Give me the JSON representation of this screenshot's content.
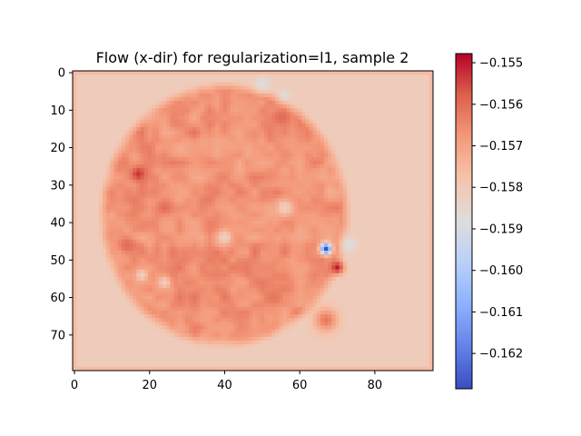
{
  "chart_data": {
    "type": "heatmap",
    "title": "Flow (x-dir) for regularization=l1, sample 2",
    "xlabel": "",
    "ylabel": "",
    "grid": false,
    "xlim": [
      -0.5,
      95.5
    ],
    "ylim": [
      79.5,
      -0.5
    ],
    "x_ticks": [
      0,
      20,
      40,
      60,
      80
    ],
    "y_ticks": [
      0,
      10,
      20,
      30,
      40,
      50,
      60,
      70
    ],
    "colormap": "coolwarm",
    "colorbar": {
      "vmin": -0.16285,
      "vmax": -0.15478,
      "ticks": [
        -0.155,
        -0.156,
        -0.157,
        -0.158,
        -0.159,
        -0.16,
        -0.161,
        -0.162
      ],
      "tick_labels": [
        "−0.155",
        "−0.156",
        "−0.157",
        "−0.158",
        "−0.159",
        "−0.160",
        "−0.161",
        "−0.162"
      ]
    },
    "grid_shape": {
      "rows": 80,
      "cols": 96
    },
    "background_value": -0.1581,
    "border_value": -0.1576,
    "region": {
      "shape": "ellipse",
      "center_x": 58,
      "center_y": 38,
      "radius_x": 46,
      "radius_y": 30,
      "base_value": -0.1567
    },
    "features": [
      {
        "x": 17,
        "y": 27,
        "radius": 2.0,
        "value": -0.1553
      },
      {
        "x": 24,
        "y": 36,
        "radius": 2.0,
        "value": -0.156
      },
      {
        "x": 14,
        "y": 46,
        "radius": 2.5,
        "value": -0.156
      },
      {
        "x": 55,
        "y": 12,
        "radius": 2.0,
        "value": -0.156
      },
      {
        "x": 53,
        "y": 60,
        "radius": 2.5,
        "value": -0.1562
      },
      {
        "x": 67,
        "y": 66,
        "radius": 3.0,
        "value": -0.1562
      },
      {
        "x": 70,
        "y": 52,
        "radius": 1.8,
        "value": -0.155
      },
      {
        "x": 67,
        "y": 47,
        "radius": 1.5,
        "value": -0.1628
      },
      {
        "x": 50,
        "y": 3,
        "radius": 2.0,
        "value": -0.1588
      },
      {
        "x": 56,
        "y": 6,
        "radius": 1.5,
        "value": -0.1587
      },
      {
        "x": 73,
        "y": 46,
        "radius": 2.0,
        "value": -0.1589
      },
      {
        "x": 40,
        "y": 44,
        "radius": 2.0,
        "value": -0.1583
      },
      {
        "x": 56,
        "y": 36,
        "radius": 2.0,
        "value": -0.1582
      },
      {
        "x": 24,
        "y": 56,
        "radius": 1.6,
        "value": -0.1582
      },
      {
        "x": 18,
        "y": 54,
        "radius": 1.6,
        "value": -0.1583
      }
    ]
  }
}
